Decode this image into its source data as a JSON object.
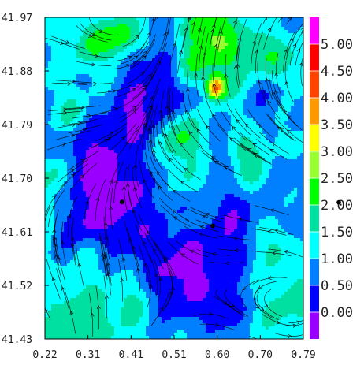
{
  "chart_data": {
    "type": "heatmap",
    "title": "",
    "xlabel": "",
    "ylabel": "",
    "x_ticks": [
      "0.22",
      "0.31",
      "0.41",
      "0.51",
      "0.60",
      "0.70",
      "0.79"
    ],
    "y_ticks": [
      "41.97",
      "41.88",
      "41.79",
      "41.70",
      "41.61",
      "41.52",
      "41.43"
    ],
    "xlim": [
      0.22,
      0.79
    ],
    "ylim": [
      41.43,
      41.97
    ],
    "colorbar": {
      "ticks": [
        "0.000",
        "0.500",
        "1.000",
        "1.500",
        "2.000",
        "2.500",
        "3.000",
        "3.500",
        "4.000",
        "4.500",
        "5.000"
      ],
      "range": [
        -0.5,
        5.5
      ],
      "bins": [
        {
          "from": -0.5,
          "to": 0.0,
          "color": "#9900ff"
        },
        {
          "from": 0.0,
          "to": 0.5,
          "color": "#0000ff"
        },
        {
          "from": 0.5,
          "to": 1.0,
          "color": "#0080ff"
        },
        {
          "from": 1.0,
          "to": 1.5,
          "color": "#00ffff"
        },
        {
          "from": 1.5,
          "to": 2.0,
          "color": "#00e0a0"
        },
        {
          "from": 2.0,
          "to": 2.5,
          "color": "#00ff00"
        },
        {
          "from": 2.5,
          "to": 3.0,
          "color": "#99ff33"
        },
        {
          "from": 3.0,
          "to": 3.5,
          "color": "#ffff00"
        },
        {
          "from": 3.5,
          "to": 4.0,
          "color": "#ff9900"
        },
        {
          "from": 4.0,
          "to": 4.5,
          "color": "#ff4400"
        },
        {
          "from": 4.5,
          "to": 5.0,
          "color": "#ff0000"
        },
        {
          "from": 5.0,
          "to": 5.5,
          "color": "#ff00ff"
        }
      ]
    },
    "markers": [
      {
        "x": 0.39,
        "y": 41.66
      },
      {
        "x": 0.59,
        "y": 41.62
      }
    ],
    "colorbar_marker_value": 2.05,
    "grid": false,
    "legend": "colorbar-right",
    "overlay": "streamlines",
    "colors": {
      "background": "#ffffff",
      "axis": "#000000",
      "streamline": "#000000",
      "marker": "#000000"
    }
  }
}
